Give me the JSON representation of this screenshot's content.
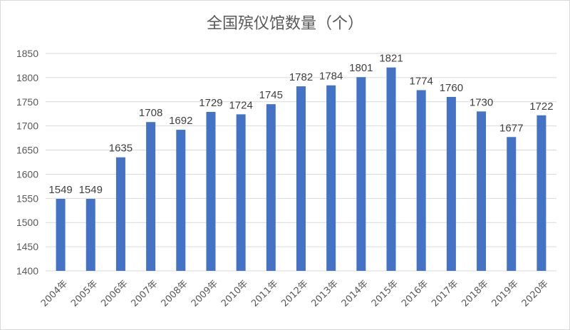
{
  "chart_data": {
    "type": "bar",
    "title": "全国殡仪馆数量（个）",
    "xlabel": "",
    "ylabel": "",
    "categories": [
      "2004年",
      "2005年",
      "2006年",
      "2007年",
      "2008年",
      "2009年",
      "2010年",
      "2011年",
      "2012年",
      "2013年",
      "2014年",
      "2015年",
      "2016年",
      "2017年",
      "2018年",
      "2019年",
      "2020年"
    ],
    "values": [
      1549,
      1549,
      1635,
      1708,
      1692,
      1729,
      1724,
      1745,
      1782,
      1784,
      1801,
      1821,
      1774,
      1760,
      1730,
      1677,
      1722
    ],
    "ylim": [
      1400,
      1850
    ],
    "yticks": [
      1400,
      1450,
      1500,
      1550,
      1600,
      1650,
      1700,
      1750,
      1800,
      1850
    ],
    "grid": true,
    "legend": "none",
    "bar_color": "#4472c4",
    "grid_color": "#d9d9d9"
  }
}
